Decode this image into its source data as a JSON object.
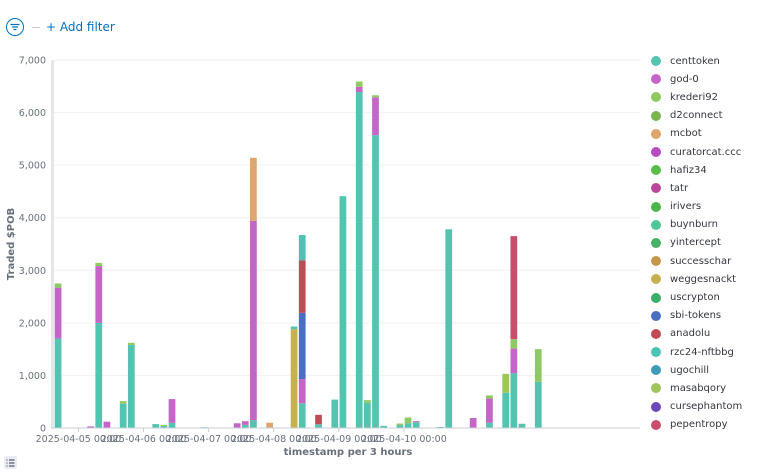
{
  "toolbar": {
    "add_filter_label": "+ Add filter",
    "filter_icon": "filter-icon"
  },
  "colors": {
    "centtoken": "#54B399",
    "god-0": "#D36086",
    "krederi92": "#9170B8",
    "d2connect": "#CA8EAE",
    "mcbot": "#D6BF57",
    "curatorcat.ccc": "#B9A888",
    "hafiz34": "#DA8B45",
    "tatr": "#AA6556",
    "irivers": "#E7664C",
    "buynburn": "#6092C0",
    "yintercept": "#54B399",
    "successchar": "#D36086",
    "weggesnackt": "#9170B8",
    "uscrypton": "#CA8EAE",
    "sbi-tokens": "#D6BF57",
    "anadolu": "#B9A888",
    "rzc24-nftbbg": "#DA8B45",
    "ugochill": "#AA6556",
    "masabqory": "#E7664C",
    "cursephantom": "#6092C0",
    "pepentropy": "#54B399"
  },
  "chart_data": {
    "type": "bar",
    "stacked": true,
    "ylabel": "Traded $POB",
    "xlabel": "timestamp per 3 hours",
    "ylim": [
      0,
      7000
    ],
    "yticks": [
      "0",
      "1,000",
      "2,000",
      "3,000",
      "4,000",
      "5,000",
      "6,000",
      "7,000"
    ],
    "xticks": [
      "2025-04-05 00:00",
      "2025-04-06 00:00",
      "2025-04-07 00:00",
      "2025-04-08 00:00",
      "2025-04-09 00:00",
      "2025-04-10 00:00"
    ],
    "legend": [
      "centtoken",
      "god-0",
      "krederi92",
      "d2connect",
      "mcbot",
      "curatorcat.ccc",
      "hafiz34",
      "tatr",
      "irivers",
      "buynburn",
      "yintercept",
      "successchar",
      "weggesnackt",
      "uscrypton",
      "sbi-tokens",
      "anadolu",
      "rzc24-nftbbg",
      "ugochill",
      "masabqory",
      "cursephantom",
      "pepentropy"
    ],
    "legend_colors": [
      "#54c4b0",
      "#c565c7",
      "#8ec963",
      "#7ab44f",
      "#e0a56b",
      "#b44bc3",
      "#57bd4a",
      "#b8479c",
      "#4ab54a",
      "#4fc796",
      "#45b066",
      "#c4964c",
      "#c5b24e",
      "#3aaf6a",
      "#4a6fc2",
      "#c24a55",
      "#4bc2b4",
      "#3e9bb9",
      "#9ec55b",
      "#6a48b8",
      "#c94d6c"
    ],
    "slots": 72,
    "bars": [
      {
        "slot": 0,
        "segments": [
          {
            "name": "centtoken",
            "value": 1700
          },
          {
            "name": "god-0",
            "value": 970
          },
          {
            "name": "krederi92",
            "value": 80
          }
        ]
      },
      {
        "slot": 4,
        "segments": [
          {
            "name": "god-0",
            "value": 30
          }
        ]
      },
      {
        "slot": 5,
        "segments": [
          {
            "name": "centtoken",
            "value": 2000
          },
          {
            "name": "god-0",
            "value": 1080
          },
          {
            "name": "krederi92",
            "value": 60
          }
        ]
      },
      {
        "slot": 6,
        "segments": [
          {
            "name": "god-0",
            "value": 120
          }
        ]
      },
      {
        "slot": 8,
        "segments": [
          {
            "name": "centtoken",
            "value": 460
          },
          {
            "name": "krederi92",
            "value": 50
          }
        ]
      },
      {
        "slot": 9,
        "segments": [
          {
            "name": "centtoken",
            "value": 1580
          },
          {
            "name": "krederi92",
            "value": 40
          }
        ]
      },
      {
        "slot": 12,
        "segments": [
          {
            "name": "centtoken",
            "value": 75
          }
        ]
      },
      {
        "slot": 13,
        "segments": [
          {
            "name": "centtoken",
            "value": 40
          },
          {
            "name": "krederi92",
            "value": 20
          }
        ]
      },
      {
        "slot": 14,
        "segments": [
          {
            "name": "centtoken",
            "value": 100
          },
          {
            "name": "god-0",
            "value": 450
          }
        ]
      },
      {
        "slot": 18,
        "segments": [
          {
            "name": "centtoken",
            "value": 15
          }
        ]
      },
      {
        "slot": 22,
        "segments": [
          {
            "name": "god-0",
            "value": 90
          }
        ]
      },
      {
        "slot": 23,
        "segments": [
          {
            "name": "centtoken",
            "value": 60
          },
          {
            "name": "god-0",
            "value": 70
          }
        ]
      },
      {
        "slot": 24,
        "segments": [
          {
            "name": "centtoken",
            "value": 150
          },
          {
            "name": "god-0",
            "value": 3790
          },
          {
            "name": "mcbot",
            "value": 1200
          }
        ]
      },
      {
        "slot": 26,
        "segments": [
          {
            "name": "mcbot",
            "value": 100
          }
        ]
      },
      {
        "slot": 29,
        "segments": [
          {
            "name": "weggesnackt",
            "value": 1880
          },
          {
            "name": "centtoken",
            "value": 50
          }
        ]
      },
      {
        "slot": 30,
        "segments": [
          {
            "name": "centtoken",
            "value": 470
          },
          {
            "name": "god-0",
            "value": 460
          },
          {
            "name": "sbi-tokens",
            "value": 1260
          },
          {
            "name": "anadolu",
            "value": 1000
          },
          {
            "name": "rzc24-nftbbg",
            "value": 480
          }
        ]
      },
      {
        "slot": 32,
        "segments": [
          {
            "name": "centtoken",
            "value": 70
          },
          {
            "name": "anadolu",
            "value": 180
          }
        ]
      },
      {
        "slot": 34,
        "segments": [
          {
            "name": "centtoken",
            "value": 540
          }
        ]
      },
      {
        "slot": 35,
        "segments": [
          {
            "name": "centtoken",
            "value": 4410
          }
        ]
      },
      {
        "slot": 37,
        "segments": [
          {
            "name": "centtoken",
            "value": 6390
          },
          {
            "name": "god-0",
            "value": 100
          },
          {
            "name": "krederi92",
            "value": 100
          }
        ]
      },
      {
        "slot": 38,
        "segments": [
          {
            "name": "centtoken",
            "value": 480
          },
          {
            "name": "krederi92",
            "value": 50
          }
        ]
      },
      {
        "slot": 39,
        "segments": [
          {
            "name": "centtoken",
            "value": 5570
          },
          {
            "name": "god-0",
            "value": 720
          },
          {
            "name": "krederi92",
            "value": 40
          }
        ]
      },
      {
        "slot": 40,
        "segments": [
          {
            "name": "centtoken",
            "value": 40
          }
        ]
      },
      {
        "slot": 42,
        "segments": [
          {
            "name": "centtoken",
            "value": 55
          },
          {
            "name": "krederi92",
            "value": 30
          }
        ]
      },
      {
        "slot": 43,
        "segments": [
          {
            "name": "centtoken",
            "value": 90
          },
          {
            "name": "krederi92",
            "value": 110
          }
        ]
      },
      {
        "slot": 44,
        "segments": [
          {
            "name": "centtoken",
            "value": 110
          },
          {
            "name": "god-0",
            "value": 20
          }
        ]
      },
      {
        "slot": 47,
        "segments": [
          {
            "name": "centtoken",
            "value": 20
          }
        ]
      },
      {
        "slot": 48,
        "segments": [
          {
            "name": "centtoken",
            "value": 3780
          }
        ]
      },
      {
        "slot": 51,
        "segments": [
          {
            "name": "god-0",
            "value": 190
          }
        ]
      },
      {
        "slot": 53,
        "segments": [
          {
            "name": "centtoken",
            "value": 100
          },
          {
            "name": "god-0",
            "value": 460
          },
          {
            "name": "krederi92",
            "value": 60
          }
        ]
      },
      {
        "slot": 55,
        "segments": [
          {
            "name": "centtoken",
            "value": 670
          },
          {
            "name": "masabqory",
            "value": 360
          }
        ]
      },
      {
        "slot": 56,
        "segments": [
          {
            "name": "centtoken",
            "value": 1040
          },
          {
            "name": "god-0",
            "value": 470
          },
          {
            "name": "krederi92",
            "value": 180
          },
          {
            "name": "pepentropy",
            "value": 1960
          }
        ]
      },
      {
        "slot": 57,
        "segments": [
          {
            "name": "centtoken",
            "value": 80
          }
        ]
      },
      {
        "slot": 59,
        "segments": [
          {
            "name": "centtoken",
            "value": 880
          },
          {
            "name": "krederi92",
            "value": 620
          }
        ]
      }
    ]
  }
}
